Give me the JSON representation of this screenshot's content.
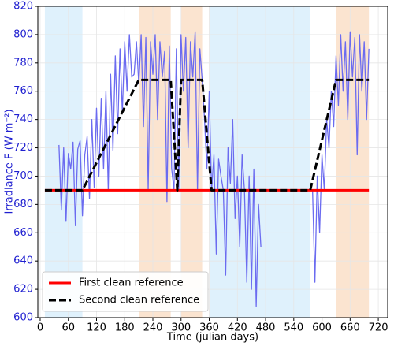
{
  "chart_data": {
    "type": "line",
    "xlabel": "Time (julian days)",
    "ylabel": "Irradiance F (W m⁻²)",
    "xlim": [
      -5,
      740
    ],
    "ylim": [
      600,
      820
    ],
    "xticks": [
      0,
      60,
      120,
      180,
      240,
      300,
      360,
      420,
      480,
      540,
      600,
      660,
      720
    ],
    "yticks": [
      600,
      620,
      640,
      660,
      680,
      700,
      720,
      740,
      760,
      780,
      800,
      820
    ],
    "grid": true,
    "y_axis_color": "#1f1fd0",
    "legend": "lower left",
    "spans": [
      {
        "start": 10,
        "end": 90,
        "color": "#dff1fc"
      },
      {
        "start": 210,
        "end": 278,
        "color": "#fbe4d0"
      },
      {
        "start": 300,
        "end": 345,
        "color": "#fbe4d0"
      },
      {
        "start": 362,
        "end": 575,
        "color": "#dff1fc"
      },
      {
        "start": 630,
        "end": 700,
        "color": "#fbe4d0"
      }
    ],
    "series": [
      {
        "color": "#6b6bf0",
        "width": 1.3,
        "x": [
          40,
          45,
          50,
          55,
          60,
          65,
          70,
          75,
          80,
          85,
          90,
          95,
          100,
          105,
          110,
          115,
          120,
          125,
          130,
          135,
          140,
          145,
          150,
          155,
          160,
          165,
          170,
          175,
          180,
          185,
          190,
          195,
          200,
          205,
          210,
          215,
          220,
          225,
          230,
          235,
          240,
          245,
          250,
          255,
          260,
          265,
          270,
          275,
          280,
          285,
          290,
          295,
          300,
          305,
          310,
          315,
          320,
          325,
          330,
          335,
          340,
          345,
          350,
          355,
          360,
          365,
          370,
          375,
          380,
          385,
          390,
          395,
          400,
          405,
          410,
          415,
          420,
          425,
          430,
          435,
          440,
          445,
          450,
          455,
          460,
          465,
          470,
          525,
          580,
          585,
          590,
          595,
          600,
          605,
          610,
          615,
          620,
          625,
          630,
          635,
          640,
          645,
          650,
          655,
          660,
          665,
          670,
          675,
          680,
          685,
          690,
          695,
          700
        ],
        "values": [
          722,
          676,
          720,
          668,
          716,
          705,
          724,
          665,
          719,
          725,
          672,
          715,
          728,
          684,
          740,
          692,
          748,
          700,
          755,
          705,
          760,
          690,
          772,
          718,
          785,
          730,
          790,
          745,
          795,
          760,
          800,
          770,
          772,
          795,
          765,
          800,
          735,
          798,
          690,
          795,
          772,
          800,
          740,
          795,
          770,
          788,
          682,
          792,
          705,
          690,
          790,
          690,
          800,
          760,
          798,
          720,
          795,
          770,
          802,
          690,
          790,
          768,
          740,
          705,
          760,
          690,
          715,
          645,
          712,
          700,
          690,
          630,
          720,
          695,
          740,
          670,
          700,
          650,
          715,
          690,
          625,
          700,
          620,
          705,
          608,
          680,
          650,
          null,
          690,
          625,
          700,
          660,
          715,
          690,
          740,
          720,
          760,
          735,
          785,
          750,
          800,
          760,
          795,
          740,
          802,
          770,
          798,
          715,
          800,
          760,
          795,
          740,
          790
        ]
      },
      {
        "name": "First clean reference",
        "color": "#ff0000",
        "width": 3,
        "dashed": false,
        "x": [
          10,
          700
        ],
        "values": [
          690,
          690
        ]
      },
      {
        "name": "Second clean reference",
        "color": "#000000",
        "width": 3,
        "dashed": true,
        "x": [
          10,
          90,
          210,
          278,
          292,
          300,
          345,
          365,
          575,
          630,
          700
        ],
        "values": [
          690,
          690,
          768,
          768,
          690,
          768,
          768,
          690,
          690,
          768,
          768
        ]
      }
    ]
  }
}
